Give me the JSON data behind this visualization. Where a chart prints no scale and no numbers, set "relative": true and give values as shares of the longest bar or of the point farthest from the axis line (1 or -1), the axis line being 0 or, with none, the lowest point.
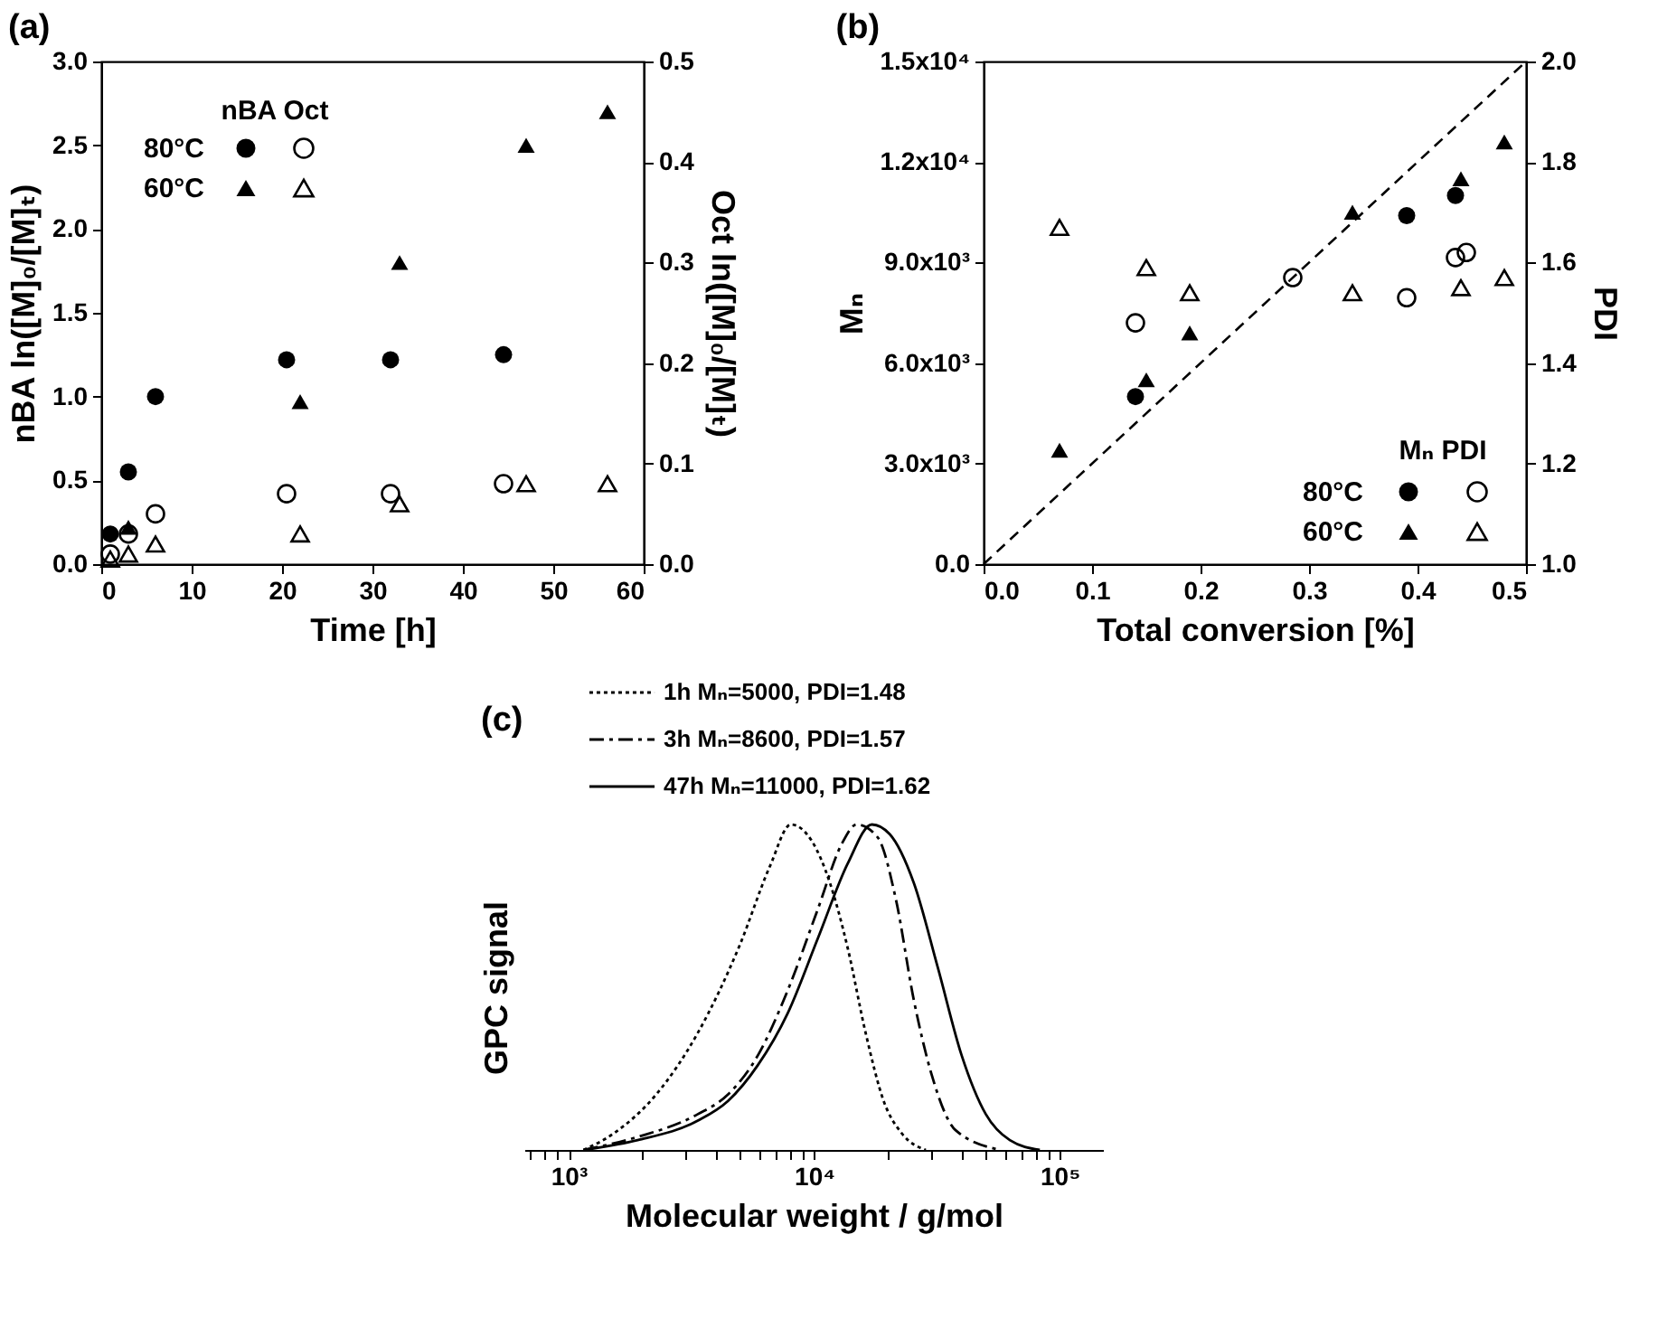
{
  "chart_data": [
    {
      "type": "scatter",
      "title": "(a)",
      "xlabel": "Time [h]",
      "ylabel": "nBA ln([M]₀/[M]ₜ)",
      "y2label": "Oct ln([M]₀/[M]ₜ)",
      "legend_title": "nBA Oct",
      "legend": "top left",
      "xlim": [
        0,
        60
      ],
      "xticks": [
        0,
        10,
        20,
        30,
        40,
        50,
        60
      ],
      "ylim": [
        0,
        3
      ],
      "yticks": [
        {
          "value": 0,
          "label": "0.0"
        },
        0.5,
        {
          "value": 1,
          "label": "1.0"
        },
        1.5,
        {
          "value": 2,
          "label": "2.0"
        },
        2.5,
        {
          "value": 3,
          "label": "3.0"
        }
      ],
      "y2lim": [
        0,
        0.5
      ],
      "y2ticks": [
        {
          "value": 0,
          "label": "0.0"
        },
        0.1,
        0.2,
        0.3,
        0.4,
        0.5
      ],
      "series": [
        {
          "name": "80°C",
          "color": "#000000",
          "marker": "circle",
          "x": [
            1,
            3,
            6,
            20.5,
            32,
            44.5
          ],
          "values": [
            0.18,
            0.55,
            1.0,
            1.22,
            1.22,
            1.25
          ]
        },
        {
          "name": "60°C",
          "color": "#000000",
          "marker": "triangle",
          "x": [
            3,
            22,
            33,
            47,
            56
          ],
          "values": [
            0.22,
            0.97,
            1.8,
            2.5,
            2.7
          ]
        },
        {
          "color": "#000000",
          "marker": "circle",
          "axis": "y2",
          "x": [
            1,
            3,
            6,
            20.5,
            32,
            44.5
          ],
          "values": [
            0.01,
            0.03,
            0.05,
            0.07,
            0.07,
            0.08
          ]
        },
        {
          "color": "#000000",
          "marker": "triangle",
          "axis": "y2",
          "x": [
            1,
            3,
            6,
            22,
            33,
            47,
            56
          ],
          "values": [
            0.005,
            0.01,
            0.02,
            0.03,
            0.06,
            0.08,
            0.08
          ]
        }
      ]
    },
    {
      "type": "scatter",
      "title": "(b)",
      "xlabel": "Total conversion [%]",
      "ylabel": "Mₙ",
      "y2label": "PDI",
      "legend_title": "Mₙ PDI",
      "legend": "bottom right",
      "xlim": [
        0,
        0.5
      ],
      "xticks": [
        {
          "value": 0,
          "label": "0.0"
        },
        0.1,
        0.2,
        0.3,
        0.4,
        0.5
      ],
      "ylim": [
        0,
        15000
      ],
      "yticks": [
        {
          "value": 0,
          "label": "0.0"
        },
        {
          "value": 3000,
          "label": "3.0x10³"
        },
        {
          "value": 6000,
          "label": "6.0x10³"
        },
        {
          "value": 9000,
          "label": "9.0x10³"
        },
        {
          "value": 12000,
          "label": "1.2x10⁴"
        },
        {
          "value": 15000,
          "label": "1.5x10⁴"
        }
      ],
      "y2lim": [
        1,
        2
      ],
      "y2ticks": [
        {
          "value": 1,
          "label": "1.0"
        },
        1.2,
        1.4,
        1.6,
        1.8,
        {
          "value": 2,
          "label": "2.0"
        }
      ],
      "series": [
        {
          "name": "80°C",
          "color": "#000000",
          "marker": "circle",
          "x": [
            0.14,
            0.39,
            0.435
          ],
          "values": [
            5000,
            10400,
            11000
          ]
        },
        {
          "name": "60°C",
          "color": "#000000",
          "marker": "triangle",
          "x": [
            0.07,
            0.15,
            0.19,
            0.34,
            0.44,
            0.48
          ],
          "values": [
            3400,
            5500,
            6900,
            10500,
            11500,
            12600
          ]
        },
        {
          "color": "#000000",
          "marker": "circle",
          "axis": "y2",
          "x": [
            0.14,
            0.285,
            0.39,
            0.435,
            0.445
          ],
          "values": [
            1.48,
            1.57,
            1.53,
            1.61,
            1.62
          ]
        },
        {
          "color": "#000000",
          "marker": "triangle",
          "axis": "y2",
          "x": [
            0.07,
            0.15,
            0.19,
            0.34,
            0.44,
            0.48
          ],
          "values": [
            1.67,
            1.59,
            1.54,
            1.54,
            1.55,
            1.57
          ]
        },
        {
          "type": "line",
          "color": "#000000",
          "line_style": "dashed",
          "x": [
            0,
            0.5
          ],
          "values": [
            0,
            15000
          ]
        }
      ]
    },
    {
      "type": "line",
      "title": "(c)",
      "xlabel": "Molecular weight / g/mol",
      "ylabel": "GPC signal",
      "legend": "top",
      "relative": true,
      "log": "x",
      "xlim": [
        660,
        150000
      ],
      "xticks": [
        {
          "value": 700,
          "label": null
        },
        {
          "value": 800,
          "label": null
        },
        {
          "value": 900,
          "label": null
        },
        {
          "value": 1000,
          "label": "10³"
        },
        {
          "value": 2000,
          "label": null
        },
        {
          "value": 3000,
          "label": null
        },
        {
          "value": 4000,
          "label": null
        },
        {
          "value": 5000,
          "label": null
        },
        {
          "value": 6000,
          "label": null
        },
        {
          "value": 7000,
          "label": null
        },
        {
          "value": 8000,
          "label": null
        },
        {
          "value": 9000,
          "label": null
        },
        {
          "value": 10000,
          "label": "10⁴"
        },
        {
          "value": 20000,
          "label": null
        },
        {
          "value": 30000,
          "label": null
        },
        {
          "value": 40000,
          "label": null
        },
        {
          "value": 50000,
          "label": null
        },
        {
          "value": 60000,
          "label": null
        },
        {
          "value": 70000,
          "label": null
        },
        {
          "value": 80000,
          "label": null
        },
        {
          "value": 90000,
          "label": null
        },
        {
          "value": 100000,
          "label": "10⁵"
        }
      ],
      "series": [
        {
          "name": "1h Mₙ=5000, PDI=1.48",
          "color": "#000000",
          "line_style": "dotted",
          "x": [
            1150,
            1520,
            2270,
            3360,
            4980,
            6590,
            8040,
            9770,
            11600,
            13700,
            16200,
            19200,
            22800,
            28500
          ],
          "values": [
            0,
            0.05,
            0.17,
            0.36,
            0.63,
            0.87,
            1,
            0.95,
            0.82,
            0.62,
            0.36,
            0.15,
            0.05,
            0
          ]
        },
        {
          "name": "3h Mₙ=8600, PDI=1.57",
          "color": "#000000",
          "line_style": "dashdot",
          "x": [
            1150,
            1910,
            3360,
            4450,
            5890,
            7800,
            10350,
            12950,
            14900,
            18160,
            21520,
            25470,
            30130,
            37760,
            57540
          ],
          "values": [
            0,
            0.04,
            0.11,
            0.17,
            0.29,
            0.49,
            0.74,
            0.94,
            1,
            0.96,
            0.77,
            0.46,
            0.23,
            0.06,
            0
          ]
        },
        {
          "name": "47h Mₙ=11000, PDI=1.62",
          "color": "#000000",
          "line_style": "solid",
          "x": [
            1150,
            1910,
            3360,
            4450,
            5890,
            7800,
            10350,
            13700,
            17180,
            20320,
            25470,
            31900,
            39900,
            50000,
            62660,
            82990
          ],
          "values": [
            0,
            0.03,
            0.09,
            0.15,
            0.26,
            0.42,
            0.65,
            0.88,
            1,
            0.97,
            0.82,
            0.56,
            0.29,
            0.11,
            0.03,
            0
          ]
        }
      ]
    }
  ]
}
